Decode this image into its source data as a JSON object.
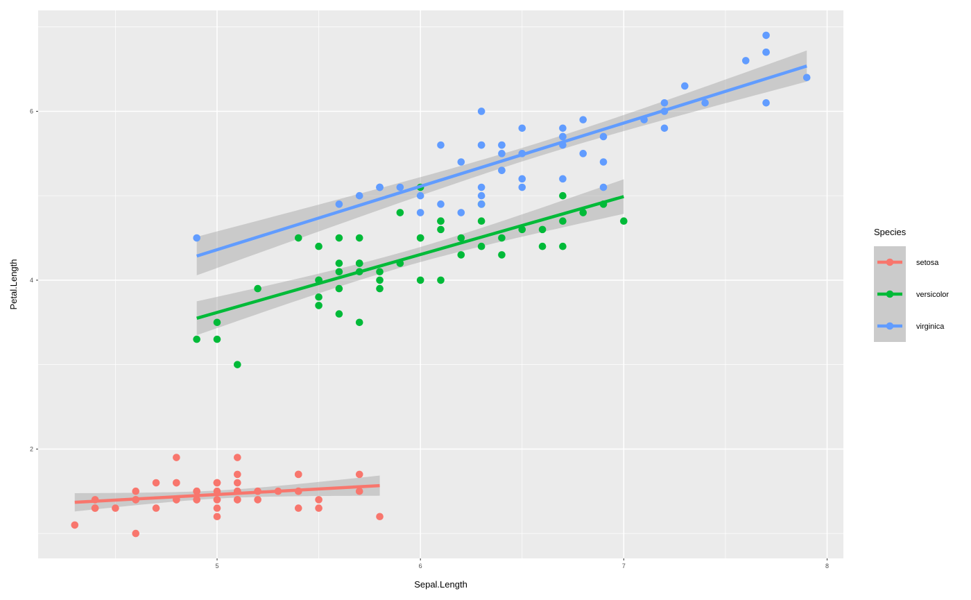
{
  "chart_data": {
    "type": "scatter",
    "title": "",
    "xlabel": "Sepal.Length",
    "ylabel": "Petal.Length",
    "xlim": [
      4.12,
      8.08
    ],
    "ylim": [
      0.705,
      7.195
    ],
    "xticks": [
      5,
      6,
      7,
      8
    ],
    "xtick_labels": [
      "5",
      "6",
      "7",
      "8"
    ],
    "yticks": [
      2,
      4,
      6
    ],
    "ytick_labels": [
      "2",
      "4",
      "6"
    ],
    "grid": true,
    "legend": {
      "title": "Species",
      "placement": "right"
    },
    "smooth": {
      "method": "lm",
      "se": true,
      "level": 0.95
    },
    "series": [
      {
        "name": "setosa",
        "color": "#F8766D",
        "x": [
          5.1,
          4.9,
          4.7,
          4.6,
          5.0,
          5.4,
          4.6,
          5.0,
          4.4,
          4.9,
          5.4,
          4.8,
          4.8,
          4.3,
          5.8,
          5.7,
          5.4,
          5.1,
          5.7,
          5.1,
          5.4,
          5.1,
          4.6,
          5.1,
          4.8,
          5.0,
          5.0,
          5.2,
          5.2,
          4.7,
          4.8,
          5.4,
          5.2,
          5.5,
          4.9,
          5.0,
          5.5,
          4.9,
          4.4,
          5.1,
          5.0,
          4.5,
          4.4,
          5.0,
          5.1,
          4.8,
          5.1,
          4.6,
          5.3,
          5.0
        ],
        "y": [
          1.4,
          1.4,
          1.3,
          1.5,
          1.4,
          1.7,
          1.4,
          1.5,
          1.4,
          1.5,
          1.5,
          1.6,
          1.4,
          1.1,
          1.2,
          1.5,
          1.3,
          1.4,
          1.7,
          1.5,
          1.7,
          1.5,
          1.0,
          1.7,
          1.9,
          1.6,
          1.6,
          1.5,
          1.4,
          1.6,
          1.6,
          1.5,
          1.5,
          1.4,
          1.5,
          1.2,
          1.3,
          1.4,
          1.3,
          1.5,
          1.3,
          1.3,
          1.3,
          1.6,
          1.9,
          1.4,
          1.6,
          1.4,
          1.5,
          1.4
        ]
      },
      {
        "name": "versicolor",
        "color": "#00BA38",
        "x": [
          7.0,
          6.4,
          6.9,
          5.5,
          6.5,
          5.7,
          6.3,
          4.9,
          6.6,
          5.2,
          5.0,
          5.9,
          6.0,
          6.1,
          5.6,
          6.7,
          5.6,
          5.8,
          6.2,
          5.6,
          5.9,
          6.1,
          6.3,
          6.1,
          6.4,
          6.6,
          6.8,
          6.7,
          6.0,
          5.7,
          5.5,
          5.5,
          5.8,
          6.0,
          5.4,
          6.0,
          6.7,
          6.3,
          5.6,
          5.5,
          5.5,
          6.1,
          5.8,
          5.0,
          5.6,
          5.7,
          5.7,
          6.2,
          5.1,
          5.7
        ],
        "y": [
          4.7,
          4.5,
          4.9,
          4.0,
          4.6,
          4.5,
          4.7,
          3.3,
          4.6,
          3.9,
          3.5,
          4.2,
          4.0,
          4.7,
          3.6,
          4.4,
          4.5,
          4.1,
          4.5,
          3.9,
          4.8,
          4.0,
          4.9,
          4.7,
          4.3,
          4.4,
          4.8,
          5.0,
          4.5,
          3.5,
          3.8,
          3.7,
          3.9,
          5.1,
          4.5,
          4.5,
          4.7,
          4.4,
          4.1,
          4.0,
          4.4,
          4.6,
          4.0,
          3.3,
          4.2,
          4.2,
          4.2,
          4.3,
          3.0,
          4.1
        ]
      },
      {
        "name": "virginica",
        "color": "#619CFF",
        "x": [
          6.3,
          5.8,
          7.1,
          6.3,
          6.5,
          7.6,
          4.9,
          7.3,
          6.7,
          7.2,
          6.5,
          6.4,
          6.8,
          5.7,
          5.8,
          6.4,
          6.5,
          7.7,
          7.7,
          6.0,
          6.9,
          5.6,
          7.7,
          6.3,
          6.7,
          7.2,
          6.2,
          6.1,
          6.4,
          7.2,
          7.4,
          7.9,
          6.4,
          6.3,
          6.1,
          7.7,
          6.3,
          6.4,
          6.0,
          6.9,
          6.7,
          6.9,
          5.8,
          6.8,
          6.7,
          6.7,
          6.3,
          6.5,
          6.2,
          5.9
        ],
        "y": [
          6.0,
          5.1,
          5.9,
          5.6,
          5.8,
          6.6,
          4.5,
          6.3,
          5.8,
          6.1,
          5.1,
          5.3,
          5.5,
          5.0,
          5.1,
          5.3,
          5.5,
          6.7,
          6.9,
          5.0,
          5.7,
          4.9,
          6.7,
          4.9,
          5.7,
          6.0,
          4.8,
          4.9,
          5.6,
          5.8,
          6.1,
          6.4,
          5.6,
          5.1,
          5.6,
          6.1,
          5.6,
          5.5,
          4.8,
          5.4,
          5.6,
          5.1,
          5.1,
          5.9,
          5.7,
          5.2,
          5.0,
          5.2,
          5.4,
          5.1
        ]
      }
    ]
  }
}
